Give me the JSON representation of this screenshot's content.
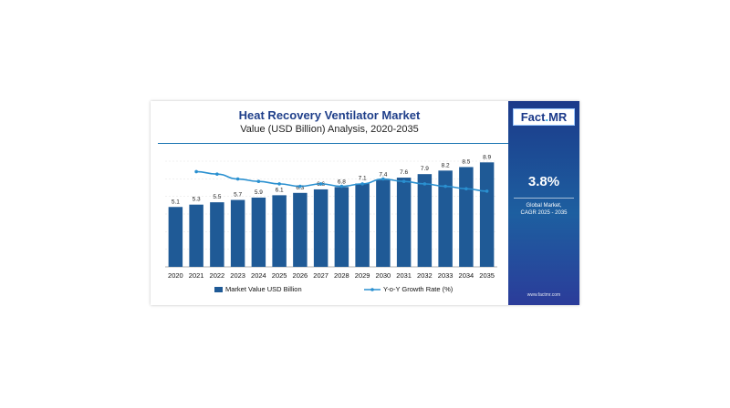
{
  "header": {
    "title": "Heat Recovery Ventilator Market",
    "subtitle": "Value (USD Billion) Analysis, 2020-2035"
  },
  "sidebar": {
    "logo_left": "Fact",
    "logo_dot": ".",
    "logo_right": "MR",
    "cagr": "3.8%",
    "cagr_line1": "Global Market,",
    "cagr_line2": "CAGR 2025 - 2035",
    "website": "www.factmr.com"
  },
  "colors": {
    "bar": "#1f5a96",
    "line": "#2a90d0",
    "title": "#1f3f8a",
    "sidebar": "#1c3a8a"
  },
  "chart_data": {
    "type": "bar",
    "categories": [
      "2020",
      "2021",
      "2022",
      "2023",
      "2024",
      "2025",
      "2026",
      "2027",
      "2028",
      "2029",
      "2030",
      "2031",
      "2032",
      "2033",
      "2034",
      "2035"
    ],
    "series": [
      {
        "name": "Market Value USD Billion",
        "type": "bar",
        "values": [
          5.1,
          5.3,
          5.5,
          5.7,
          5.9,
          6.1,
          6.3,
          6.6,
          6.8,
          7.1,
          7.4,
          7.6,
          7.9,
          8.2,
          8.5,
          8.9
        ]
      },
      {
        "name": "Y-o-Y Growth Rate (%)",
        "type": "line",
        "values": [
          null,
          3.9,
          3.8,
          3.6,
          3.5,
          3.4,
          3.3,
          3.4,
          3.3,
          3.4,
          3.6,
          3.5,
          3.4,
          3.3,
          3.2,
          3.1
        ]
      }
    ],
    "data_labels": [
      "5.1",
      "5.3",
      "5.5",
      "5.7",
      "5.9",
      "6.1",
      "6.3",
      "6.6",
      "6.8",
      "7.1",
      "7.4",
      "7.6",
      "7.9",
      "8.2",
      "8.5",
      "8.9"
    ],
    "legend_position": "bottom",
    "grid": true
  }
}
